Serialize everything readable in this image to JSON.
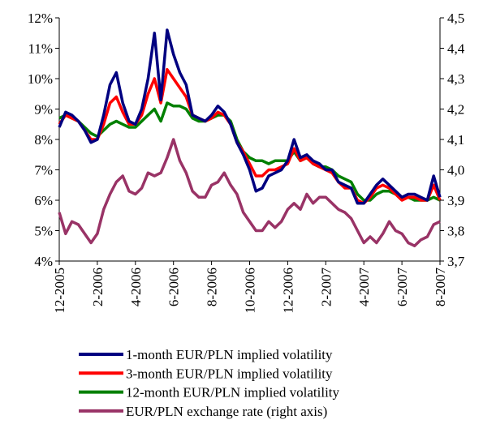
{
  "chart_data": {
    "type": "line",
    "categories": [
      "12-2005",
      null,
      null,
      null,
      null,
      null,
      "2-2006",
      null,
      null,
      null,
      null,
      null,
      "4-2006",
      null,
      null,
      null,
      null,
      null,
      "6-2006",
      null,
      null,
      null,
      null,
      null,
      "8-2006",
      null,
      null,
      null,
      null,
      null,
      "10-2006",
      null,
      null,
      null,
      null,
      null,
      "12-2006",
      null,
      null,
      null,
      null,
      null,
      "2-2007",
      null,
      null,
      null,
      null,
      null,
      "4-2007",
      null,
      null,
      null,
      null,
      null,
      "6-2007",
      null,
      null,
      null,
      null,
      null,
      "8-2007"
    ],
    "ylim": [
      4,
      12
    ],
    "yticks": [
      {
        "value": 4,
        "label": "4%"
      },
      {
        "value": 5,
        "label": "5%"
      },
      {
        "value": 6,
        "label": "6%"
      },
      {
        "value": 7,
        "label": "7%"
      },
      {
        "value": 8,
        "label": "8%"
      },
      {
        "value": 9,
        "label": "9%"
      },
      {
        "value": 10,
        "label": "10%"
      },
      {
        "value": 11,
        "label": "11%"
      },
      {
        "value": 12,
        "label": "12%"
      }
    ],
    "y2lim": [
      3.7,
      4.5
    ],
    "y2ticks": [
      {
        "value": 3.7,
        "label": "3,7"
      },
      {
        "value": 3.8,
        "label": "3,8"
      },
      {
        "value": 3.9,
        "label": "3,9"
      },
      {
        "value": 4.0,
        "label": "4,0"
      },
      {
        "value": 4.1,
        "label": "4,1"
      },
      {
        "value": 4.2,
        "label": "4,2"
      },
      {
        "value": 4.3,
        "label": "4,3"
      },
      {
        "value": 4.4,
        "label": "4,4"
      },
      {
        "value": 4.5,
        "label": "4,5"
      }
    ],
    "grid": false,
    "legend": "bottom",
    "series": [
      {
        "name": "1-month EUR/PLN implied volatility",
        "color": "#000080",
        "values": [
          8.4,
          8.9,
          8.8,
          8.6,
          8.3,
          7.9,
          8.0,
          8.8,
          9.8,
          10.2,
          9.2,
          8.6,
          8.5,
          9.0,
          10.0,
          11.5,
          9.3,
          11.6,
          10.8,
          10.2,
          9.8,
          8.8,
          8.7,
          8.6,
          8.8,
          9.1,
          8.9,
          8.5,
          7.9,
          7.5,
          7.0,
          6.3,
          6.4,
          6.8,
          6.9,
          7.0,
          7.3,
          8.0,
          7.4,
          7.5,
          7.3,
          7.2,
          7.0,
          7.0,
          6.6,
          6.5,
          6.4,
          5.9,
          5.9,
          6.2,
          6.5,
          6.7,
          6.5,
          6.3,
          6.1,
          6.2,
          6.2,
          6.1,
          6.0,
          6.8,
          6.1
        ]
      },
      {
        "name": "3-month EUR/PLN implied volatility",
        "color": "#ff0000",
        "values": [
          8.5,
          8.8,
          8.7,
          8.6,
          8.3,
          8.0,
          8.0,
          8.5,
          9.2,
          9.4,
          8.9,
          8.5,
          8.5,
          8.8,
          9.5,
          10.0,
          9.2,
          10.3,
          10.0,
          9.7,
          9.4,
          8.8,
          8.7,
          8.6,
          8.7,
          8.9,
          8.8,
          8.5,
          7.9,
          7.6,
          7.2,
          6.8,
          6.8,
          7.0,
          7.0,
          7.1,
          7.2,
          7.7,
          7.3,
          7.4,
          7.2,
          7.1,
          7.0,
          6.9,
          6.6,
          6.4,
          6.4,
          6.0,
          5.9,
          6.1,
          6.4,
          6.5,
          6.4,
          6.2,
          6.0,
          6.1,
          6.1,
          6.0,
          6.0,
          6.5,
          6.0
        ]
      },
      {
        "name": "12-month EUR/PLN implied volatility",
        "color": "#008000",
        "values": [
          8.7,
          8.8,
          8.7,
          8.6,
          8.4,
          8.2,
          8.1,
          8.3,
          8.5,
          8.6,
          8.5,
          8.4,
          8.4,
          8.6,
          8.8,
          9.0,
          8.6,
          9.2,
          9.1,
          9.1,
          9.0,
          8.7,
          8.6,
          8.6,
          8.7,
          8.8,
          8.8,
          8.6,
          8.0,
          7.6,
          7.4,
          7.3,
          7.3,
          7.2,
          7.3,
          7.3,
          7.3,
          7.6,
          7.3,
          7.4,
          7.2,
          7.1,
          7.1,
          7.0,
          6.8,
          6.7,
          6.6,
          6.2,
          6.0,
          6.0,
          6.2,
          6.3,
          6.3,
          6.2,
          6.1,
          6.1,
          6.0,
          6.0,
          6.0,
          6.1,
          6.0
        ]
      },
      {
        "name": "EUR/PLN exchange rate (right axis)",
        "color": "#993366",
        "axis": "y2",
        "values": [
          3.86,
          3.79,
          3.83,
          3.82,
          3.79,
          3.76,
          3.79,
          3.87,
          3.92,
          3.96,
          3.98,
          3.93,
          3.92,
          3.94,
          3.99,
          3.98,
          3.99,
          4.04,
          4.1,
          4.03,
          3.99,
          3.93,
          3.91,
          3.91,
          3.95,
          3.96,
          3.99,
          3.95,
          3.92,
          3.86,
          3.83,
          3.8,
          3.8,
          3.83,
          3.81,
          3.83,
          3.87,
          3.89,
          3.87,
          3.92,
          3.89,
          3.91,
          3.91,
          3.89,
          3.87,
          3.86,
          3.84,
          3.8,
          3.76,
          3.78,
          3.76,
          3.79,
          3.83,
          3.8,
          3.79,
          3.76,
          3.75,
          3.77,
          3.78,
          3.82,
          3.83
        ]
      }
    ]
  }
}
